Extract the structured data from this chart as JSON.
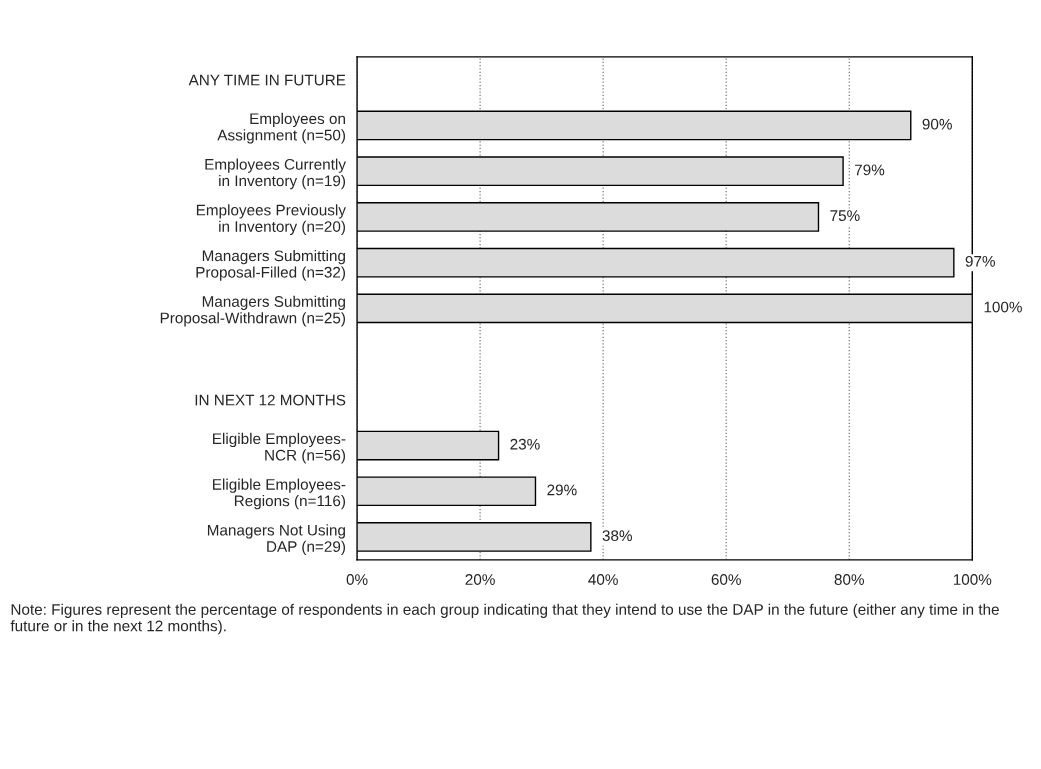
{
  "chart_data": {
    "type": "bar",
    "orientation": "horizontal",
    "categories": [
      "ANY TIME IN FUTURE",
      "Employees on\nAssignment (n=50)",
      "Employees Currently\nin Inventory (n=19)",
      "Employees Previously\nin Inventory (n=20)",
      "Managers Submitting\nProposal-Filled (n=32)",
      "Managers Submitting\nProposal-Withdrawn (n=25)",
      null,
      "IN NEXT 12 MONTHS",
      "Eligible Employees-\nNCR (n=56)",
      "Eligible Employees-\nRegions (n=116)",
      "Managers Not Using\nDAP (n=29)"
    ],
    "values": [
      null,
      90,
      79,
      75,
      97,
      100,
      null,
      null,
      23,
      29,
      38
    ],
    "value_labels": [
      null,
      "90%",
      "79%",
      "75%",
      "97%",
      "100%",
      null,
      null,
      "23%",
      "29%",
      "38%"
    ],
    "color": "#dcdcdc",
    "xlim": [
      0,
      100
    ],
    "xticks": [
      {
        "value": 0,
        "label": "0%"
      },
      {
        "value": 20,
        "label": "20%"
      },
      {
        "value": 40,
        "label": "40%"
      },
      {
        "value": 60,
        "label": "60%"
      },
      {
        "value": 80,
        "label": "80%"
      },
      {
        "value": 100,
        "label": "100%"
      }
    ],
    "grid": "x",
    "legend": false,
    "annotations": [
      "Note: Figures represent the percentage of respondents in each group indicating that they intend to use the DAP in the future (either any time in the future or in the next 12 months)."
    ]
  }
}
